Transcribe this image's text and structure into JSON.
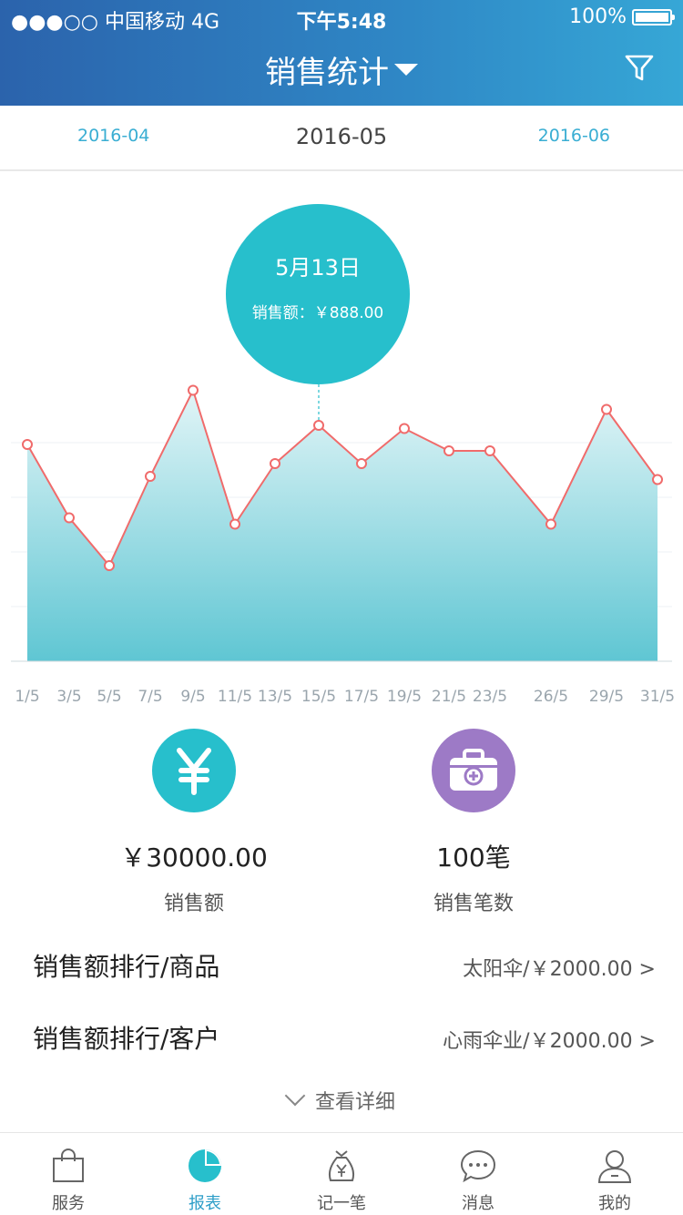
{
  "status_bar": {
    "carrier": "●●●○○ 中国移动   4G",
    "time": "下午5:48",
    "battery": "100%"
  },
  "header": {
    "title": "销售统计"
  },
  "months": {
    "prev": "2016-04",
    "current": "2016-05",
    "next": "2016-06"
  },
  "tooltip": {
    "date": "5月13日",
    "label": "销售额：￥888.00"
  },
  "chart_data": {
    "type": "area",
    "x_labels": [
      "1/5",
      "3/5",
      "5/5",
      "7/5",
      "9/5",
      "11/5",
      "13/5",
      "15/5",
      "17/5",
      "19/5",
      "21/5",
      "23/5",
      "26/5",
      "29/5",
      "31/5"
    ],
    "values": [
      68,
      45,
      30,
      58,
      85,
      43,
      62,
      74,
      62,
      73,
      66,
      66,
      43,
      79,
      57
    ],
    "ylim": [
      0,
      100
    ],
    "line_color": "#f06b6b",
    "fill_top": "#e2f5f7",
    "fill_bottom": "#5fc6d3"
  },
  "stats": [
    {
      "value": "￥30000.00",
      "label": "销售额",
      "color": "#27bfcc"
    },
    {
      "value": "100笔",
      "label": "销售笔数",
      "color": "#9d7ac6"
    }
  ],
  "ranks": [
    {
      "title": "销售额排行/商品",
      "value": "太阳伞/￥2000.00 >"
    },
    {
      "title": "销售额排行/客户",
      "value": "心雨伞业/￥2000.00 >"
    }
  ],
  "more": "查看详细",
  "tabs": [
    {
      "label": "服务",
      "icon": "bag-icon"
    },
    {
      "label": "报表",
      "icon": "pie-chart-icon"
    },
    {
      "label": "记一笔",
      "icon": "money-bag-icon"
    },
    {
      "label": "消息",
      "icon": "chat-icon"
    },
    {
      "label": "我的",
      "icon": "user-icon"
    }
  ]
}
